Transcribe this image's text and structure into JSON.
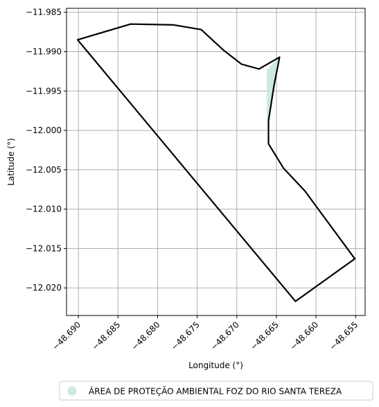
{
  "chart_data": {
    "type": "map",
    "xlabel": "Longitude (°)",
    "ylabel": "Latitude (°)",
    "xlim": [
      -48.6915,
      -48.6538
    ],
    "ylim": [
      -12.0235,
      -11.9845
    ],
    "xticks": [
      -48.69,
      -48.685,
      -48.68,
      -48.675,
      -48.67,
      -48.665,
      -48.66,
      -48.655
    ],
    "xtick_labels": [
      "−48.690",
      "−48.685",
      "−48.680",
      "−48.675",
      "−48.670",
      "−48.665",
      "−48.660",
      "−48.655"
    ],
    "yticks": [
      -11.985,
      -11.99,
      -11.995,
      -12.0,
      -12.005,
      -12.01,
      -12.015,
      -12.02
    ],
    "ytick_labels": [
      "−11.985",
      "−11.990",
      "−11.995",
      "−12.000",
      "−12.005",
      "−12.010",
      "−12.015",
      "−12.020"
    ],
    "grid": true,
    "legend_position": "bottom-center",
    "legend_entry": "ÁREA DE PROTEÇÃO AMBIENTAL FOZ DO RIO SANTA TEREZA",
    "fill_color": "#cdeadb",
    "outline_color": "#000000",
    "outline": [
      [
        -48.6901,
        -11.9885
      ],
      [
        -48.6834,
        -11.9865
      ],
      [
        -48.678,
        -11.9866
      ],
      [
        -48.6745,
        -11.9872
      ],
      [
        -48.6717,
        -11.9898
      ],
      [
        -48.6694,
        -11.9916
      ],
      [
        -48.6672,
        -11.9922
      ],
      [
        -48.6646,
        -11.9907
      ],
      [
        -48.6653,
        -11.9943
      ],
      [
        -48.666,
        -11.9988
      ],
      [
        -48.666,
        -12.0017
      ],
      [
        -48.6641,
        -12.0048
      ],
      [
        -48.6614,
        -12.0077
      ],
      [
        -48.6551,
        -12.0163
      ],
      [
        -48.6626,
        -12.0217
      ],
      [
        -48.6901,
        -11.9885
      ]
    ],
    "filled_polygon": [
      [
        -48.6662,
        -11.9923
      ],
      [
        -48.6646,
        -11.9907
      ],
      [
        -48.6653,
        -11.9943
      ],
      [
        -48.666,
        -11.9988
      ],
      [
        -48.6662,
        -11.9988
      ]
    ]
  }
}
